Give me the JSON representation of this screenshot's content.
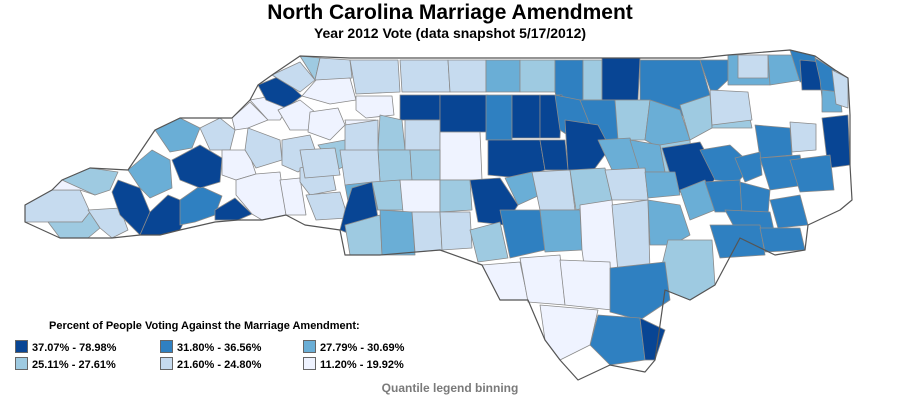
{
  "title": "North Carolina Marriage Amendment",
  "subtitle": "Year 2012 Vote (data snapshot 5/17/2012)",
  "legend": {
    "title": "Percent of People Voting Against the Marriage Amendment:",
    "bins": [
      {
        "label": "37.07% - 78.98%",
        "color": "#084594"
      },
      {
        "label": "31.80% - 36.56%",
        "color": "#2f80c1"
      },
      {
        "label": "27.79% - 30.69%",
        "color": "#6aaed6"
      },
      {
        "label": "25.11% - 27.61%",
        "color": "#9ecae1"
      },
      {
        "label": "21.60% - 24.80%",
        "color": "#c6dbef"
      },
      {
        "label": "11.20% - 19.92%",
        "color": "#eff3ff"
      }
    ]
  },
  "footnote": "Quantile legend binning",
  "colors": {
    "county_border": "#8a8a8a",
    "state_border": "#555555"
  }
}
